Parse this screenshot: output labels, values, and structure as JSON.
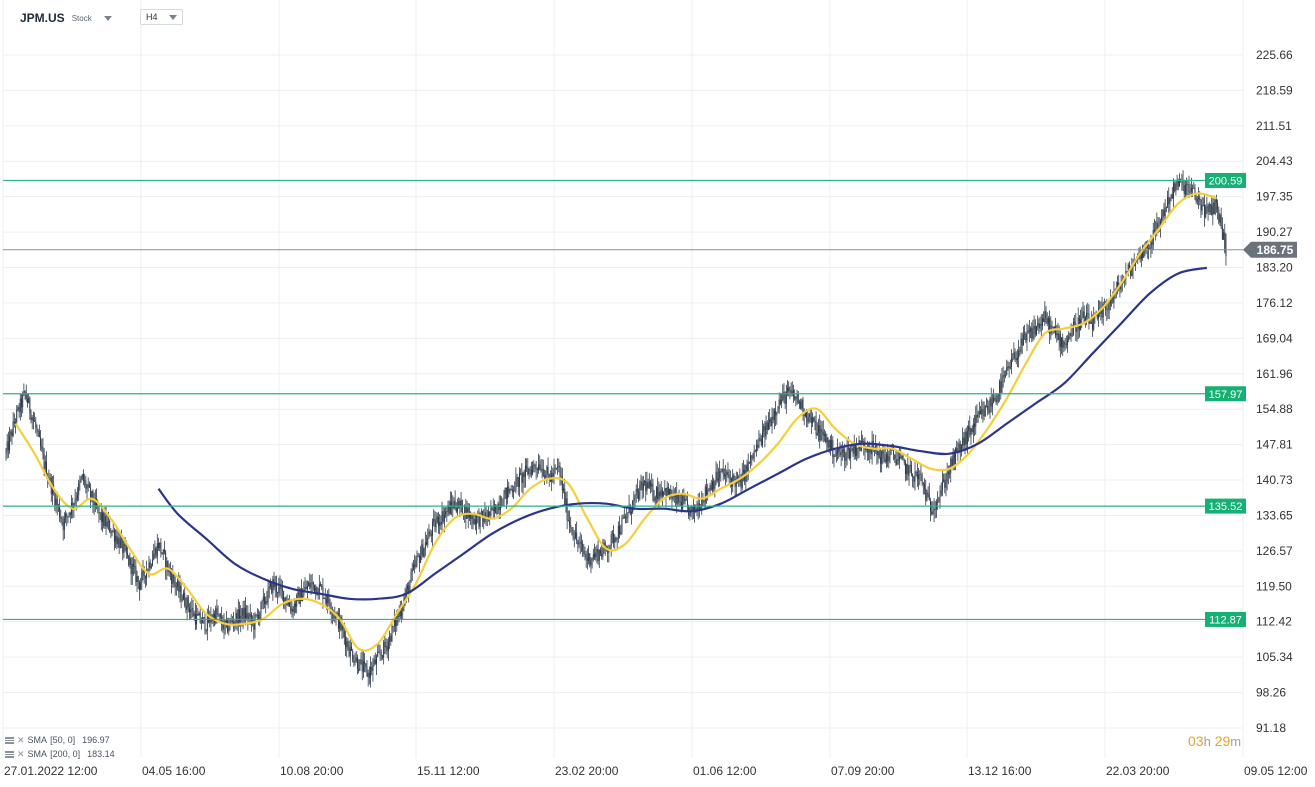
{
  "header": {
    "symbol": "JPM.US",
    "symbol_type": "Stock",
    "timeframe": "H4"
  },
  "indicators": [
    {
      "label": "SMA",
      "params": "[50, 0]",
      "value": "196.97",
      "color": "#f5cf3b"
    },
    {
      "label": "SMA",
      "params": "[200, 0]",
      "value": "183.14",
      "color": "#2b3589"
    }
  ],
  "countdown": {
    "hours": "03",
    "h": "h",
    "minutes": "29",
    "m": "m"
  },
  "colors": {
    "candle": "#2f3b4a",
    "support_line": "#2bb38f",
    "support_badge": "#16b075",
    "current_price_line": "#8a9099",
    "current_badge": "#6b727c",
    "grid": "#eceff2",
    "axis_text": "#333333"
  },
  "chart_data": {
    "type": "candlestick",
    "title": "",
    "y_ticks": [
      "225.66",
      "218.59",
      "211.51",
      "204.43",
      "197.35",
      "190.27",
      "183.20",
      "176.12",
      "169.04",
      "161.96",
      "154.88",
      "147.81",
      "140.73",
      "133.65",
      "126.57",
      "119.50",
      "112.42",
      "105.34",
      "98.26",
      "91.18"
    ],
    "ylim": [
      91.18,
      225.66
    ],
    "x_ticks": [
      "27.01.2022  12:00",
      "04.05  16:00",
      "10.08  20:00",
      "15.11  12:00",
      "23.02  20:00",
      "01.06  12:00",
      "07.09  20:00",
      "13.12  16:00",
      "22.03  20:00",
      "09.05  12:00"
    ],
    "horizontal_levels": [
      {
        "value": 200.59,
        "label": "200.59"
      },
      {
        "value": 157.97,
        "label": "157.97"
      },
      {
        "value": 135.52,
        "label": "135.52"
      },
      {
        "value": 112.87,
        "label": "112.87"
      }
    ],
    "current_price": {
      "value": 186.75,
      "label": "186.75"
    },
    "price_path": [
      [
        0,
        146
      ],
      [
        1,
        153
      ],
      [
        2,
        158
      ],
      [
        3,
        152
      ],
      [
        4,
        144
      ],
      [
        5,
        138
      ],
      [
        6,
        132
      ],
      [
        7,
        136
      ],
      [
        8,
        141
      ],
      [
        9,
        137
      ],
      [
        10,
        133
      ],
      [
        11,
        131
      ],
      [
        12,
        128
      ],
      [
        13,
        124
      ],
      [
        14,
        120
      ],
      [
        15,
        124
      ],
      [
        16,
        128
      ],
      [
        17,
        123
      ],
      [
        18,
        119
      ],
      [
        19,
        116
      ],
      [
        20,
        113
      ],
      [
        21,
        112
      ],
      [
        22,
        114
      ],
      [
        23,
        111
      ],
      [
        24,
        113
      ],
      [
        25,
        114
      ],
      [
        26,
        112
      ],
      [
        27,
        116
      ],
      [
        28,
        120
      ],
      [
        29,
        118
      ],
      [
        30,
        115
      ],
      [
        31,
        118
      ],
      [
        32,
        120
      ],
      [
        33,
        119
      ],
      [
        34,
        116
      ],
      [
        35,
        112
      ],
      [
        36,
        107
      ],
      [
        37,
        104
      ],
      [
        38,
        102
      ],
      [
        39,
        105
      ],
      [
        40,
        108
      ],
      [
        41,
        113
      ],
      [
        42,
        118
      ],
      [
        43,
        124
      ],
      [
        44,
        128
      ],
      [
        45,
        132
      ],
      [
        46,
        134
      ],
      [
        47,
        136
      ],
      [
        48,
        135
      ],
      [
        49,
        133
      ],
      [
        50,
        133
      ],
      [
        51,
        134
      ],
      [
        52,
        137
      ],
      [
        53,
        139
      ],
      [
        54,
        141
      ],
      [
        55,
        143
      ],
      [
        56,
        144
      ],
      [
        57,
        141
      ],
      [
        58,
        143
      ],
      [
        59,
        133
      ],
      [
        60,
        128
      ],
      [
        61,
        125
      ],
      [
        62,
        126
      ],
      [
        63,
        127
      ],
      [
        64,
        130
      ],
      [
        65,
        133
      ],
      [
        66,
        137
      ],
      [
        67,
        140
      ],
      [
        68,
        138
      ],
      [
        69,
        139
      ],
      [
        70,
        137
      ],
      [
        71,
        136
      ],
      [
        72,
        134
      ],
      [
        73,
        137
      ],
      [
        74,
        140
      ],
      [
        75,
        142
      ],
      [
        76,
        141
      ],
      [
        77,
        140
      ],
      [
        78,
        144
      ],
      [
        79,
        148
      ],
      [
        80,
        152
      ],
      [
        81,
        156
      ],
      [
        82,
        158
      ],
      [
        83,
        157
      ],
      [
        84,
        154
      ],
      [
        85,
        151
      ],
      [
        86,
        149
      ],
      [
        87,
        146
      ],
      [
        88,
        146
      ],
      [
        89,
        147
      ],
      [
        90,
        148
      ],
      [
        91,
        147
      ],
      [
        92,
        145
      ],
      [
        93,
        146
      ],
      [
        94,
        144
      ],
      [
        95,
        142
      ],
      [
        96,
        141
      ],
      [
        97,
        135
      ],
      [
        98,
        138
      ],
      [
        99,
        143
      ],
      [
        100,
        147
      ],
      [
        101,
        150
      ],
      [
        102,
        153
      ],
      [
        103,
        155
      ],
      [
        104,
        158
      ],
      [
        105,
        162
      ],
      [
        106,
        166
      ],
      [
        107,
        169
      ],
      [
        108,
        171
      ],
      [
        109,
        173
      ],
      [
        110,
        170
      ],
      [
        111,
        168
      ],
      [
        112,
        171
      ],
      [
        113,
        173
      ],
      [
        114,
        172
      ],
      [
        115,
        174
      ],
      [
        116,
        177
      ],
      [
        117,
        180
      ],
      [
        118,
        183
      ],
      [
        119,
        186
      ],
      [
        120,
        188
      ],
      [
        121,
        192
      ],
      [
        122,
        197
      ],
      [
        123,
        200
      ],
      [
        124,
        199
      ],
      [
        125,
        197
      ],
      [
        126,
        194
      ],
      [
        127,
        196
      ],
      [
        128,
        186.75
      ]
    ],
    "series": [
      {
        "name": "SMA [50, 0]",
        "values": [
          [
            1,
            152
          ],
          [
            3,
            146
          ],
          [
            5,
            139
          ],
          [
            7,
            135
          ],
          [
            9,
            137
          ],
          [
            11,
            133
          ],
          [
            13,
            127
          ],
          [
            15,
            122
          ],
          [
            17,
            123
          ],
          [
            19,
            119
          ],
          [
            21,
            114
          ],
          [
            23,
            112
          ],
          [
            25,
            112
          ],
          [
            27,
            113
          ],
          [
            29,
            116
          ],
          [
            31,
            117
          ],
          [
            33,
            116
          ],
          [
            35,
            113
          ],
          [
            37,
            107
          ],
          [
            39,
            108
          ],
          [
            41,
            114
          ],
          [
            43,
            120
          ],
          [
            45,
            128
          ],
          [
            47,
            133
          ],
          [
            49,
            134
          ],
          [
            51,
            133
          ],
          [
            53,
            135
          ],
          [
            55,
            139
          ],
          [
            57,
            141
          ],
          [
            59,
            140
          ],
          [
            61,
            133
          ],
          [
            63,
            127
          ],
          [
            65,
            128
          ],
          [
            67,
            133
          ],
          [
            69,
            137
          ],
          [
            71,
            138
          ],
          [
            73,
            137
          ],
          [
            75,
            139
          ],
          [
            77,
            141
          ],
          [
            79,
            144
          ],
          [
            81,
            148
          ],
          [
            83,
            153
          ],
          [
            85,
            155
          ],
          [
            87,
            151
          ],
          [
            89,
            148
          ],
          [
            91,
            147
          ],
          [
            93,
            147
          ],
          [
            95,
            145
          ],
          [
            97,
            143
          ],
          [
            99,
            143
          ],
          [
            101,
            146
          ],
          [
            103,
            151
          ],
          [
            105,
            157
          ],
          [
            107,
            164
          ],
          [
            109,
            170
          ],
          [
            111,
            171
          ],
          [
            113,
            172
          ],
          [
            115,
            175
          ],
          [
            117,
            180
          ],
          [
            119,
            186
          ],
          [
            121,
            191
          ],
          [
            123,
            196
          ],
          [
            125,
            198
          ],
          [
            127,
            197
          ]
        ]
      },
      {
        "name": "SMA [200, 0]",
        "values": [
          [
            16,
            139
          ],
          [
            18,
            134
          ],
          [
            21,
            129
          ],
          [
            24,
            124
          ],
          [
            27,
            121
          ],
          [
            30,
            119
          ],
          [
            33,
            118
          ],
          [
            36,
            117
          ],
          [
            39,
            117
          ],
          [
            42,
            118
          ],
          [
            45,
            122
          ],
          [
            48,
            126
          ],
          [
            51,
            130
          ],
          [
            54,
            133
          ],
          [
            57,
            135
          ],
          [
            60,
            136
          ],
          [
            63,
            136
          ],
          [
            66,
            135
          ],
          [
            69,
            135
          ],
          [
            72,
            134.5
          ],
          [
            75,
            136
          ],
          [
            78,
            139
          ],
          [
            81,
            142
          ],
          [
            84,
            145
          ],
          [
            87,
            147
          ],
          [
            90,
            148
          ],
          [
            93,
            147.5
          ],
          [
            96,
            146.5
          ],
          [
            99,
            146
          ],
          [
            102,
            148
          ],
          [
            105,
            152
          ],
          [
            108,
            156
          ],
          [
            111,
            160
          ],
          [
            114,
            166
          ],
          [
            117,
            172
          ],
          [
            120,
            178
          ],
          [
            123,
            182
          ],
          [
            126,
            183.14
          ]
        ]
      }
    ]
  }
}
